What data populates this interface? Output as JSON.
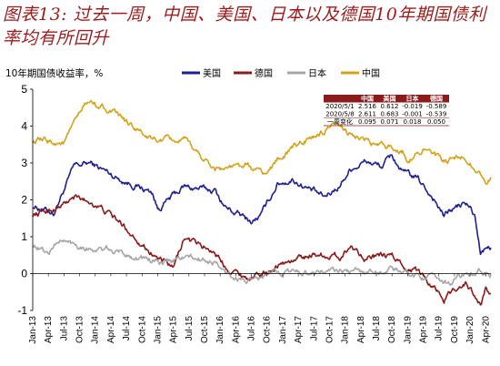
{
  "figure_title": "图表13: 过去一周，中国、美国、日本以及德国10年期国债利率均有所回升",
  "chart_data": {
    "type": "line",
    "ylabel": "10年期国债收益率，%",
    "ylim": [
      -1,
      5
    ],
    "yticks": [
      -1,
      0,
      1,
      2,
      3,
      4,
      5
    ],
    "xlim": [
      "2013-01",
      "2020-05"
    ],
    "xticks": [
      "Jan-13",
      "Apr-13",
      "Jul-13",
      "Oct-13",
      "Jan-14",
      "Apr-14",
      "Jul-14",
      "Oct-14",
      "Jan-15",
      "Apr-15",
      "Jul-15",
      "Oct-15",
      "Jan-16",
      "Apr-16",
      "Jul-16",
      "Oct-16",
      "Jan-17",
      "Apr-17",
      "Jul-17",
      "Oct-17",
      "Jan-18",
      "Apr-18",
      "Jul-18",
      "Oct-18",
      "Jan-19",
      "Apr-19",
      "Jul-19",
      "Oct-19",
      "Jan-20",
      "Apr-20"
    ],
    "legend_position": "top",
    "series": [
      {
        "name": "美国",
        "color": "#1f1f8f",
        "x": [
          "2013-01",
          "2013-05",
          "2013-09",
          "2013-12",
          "2014-06",
          "2014-12",
          "2015-01",
          "2015-06",
          "2015-12",
          "2016-02",
          "2016-07",
          "2016-09",
          "2016-12",
          "2017-03",
          "2017-09",
          "2017-12",
          "2018-02",
          "2018-05",
          "2018-08",
          "2018-10",
          "2018-12",
          "2019-03",
          "2019-06",
          "2019-08",
          "2019-09",
          "2019-12",
          "2020-01",
          "2020-02",
          "2020-03",
          "2020-04",
          "2020-05"
        ],
        "y": [
          1.85,
          1.65,
          2.9,
          3.0,
          2.55,
          2.2,
          1.75,
          2.35,
          2.25,
          1.8,
          1.4,
          1.6,
          2.45,
          2.55,
          2.05,
          2.4,
          2.85,
          3.05,
          2.9,
          3.2,
          2.75,
          2.55,
          2.05,
          1.55,
          1.7,
          1.9,
          1.8,
          1.5,
          0.55,
          0.62,
          0.7
        ]
      },
      {
        "name": "德国",
        "color": "#8b1a1a",
        "x": [
          "2013-01",
          "2013-06",
          "2013-09",
          "2014-01",
          "2014-06",
          "2014-12",
          "2015-04",
          "2015-06",
          "2015-12",
          "2016-02",
          "2016-07",
          "2016-10",
          "2016-12",
          "2017-03",
          "2017-07",
          "2017-12",
          "2018-02",
          "2018-05",
          "2018-10",
          "2018-12",
          "2019-03",
          "2019-06",
          "2019-08",
          "2019-10",
          "2019-12",
          "2020-01",
          "2020-03",
          "2020-04",
          "2020-05"
        ],
        "y": [
          1.6,
          1.8,
          2.05,
          1.9,
          1.35,
          0.55,
          0.1,
          0.95,
          0.6,
          0.2,
          -0.15,
          0.05,
          0.25,
          0.35,
          0.55,
          0.45,
          0.75,
          0.45,
          0.45,
          0.25,
          0.05,
          -0.3,
          -0.7,
          -0.4,
          -0.25,
          -0.4,
          -0.85,
          -0.45,
          -0.54
        ]
      },
      {
        "name": "日本",
        "color": "#a6a6a6",
        "x": [
          "2013-01",
          "2013-04",
          "2013-06",
          "2013-12",
          "2014-06",
          "2014-12",
          "2015-02",
          "2015-06",
          "2015-12",
          "2016-02",
          "2016-07",
          "2016-10",
          "2016-12",
          "2017-06",
          "2018-06",
          "2018-10",
          "2019-01",
          "2019-03",
          "2019-06",
          "2019-09",
          "2019-12",
          "2020-02",
          "2020-03",
          "2020-05"
        ],
        "y": [
          0.8,
          0.55,
          0.9,
          0.7,
          0.55,
          0.35,
          0.25,
          0.45,
          0.3,
          0.0,
          -0.25,
          -0.05,
          0.05,
          0.05,
          0.05,
          0.12,
          0.0,
          -0.05,
          -0.15,
          -0.25,
          -0.02,
          -0.05,
          0.05,
          0.0
        ]
      },
      {
        "name": "中国",
        "color": "#d4a21a",
        "x": [
          "2013-01",
          "2013-07",
          "2013-11",
          "2013-12",
          "2014-03",
          "2014-06",
          "2014-12",
          "2015-06",
          "2015-12",
          "2016-06",
          "2016-10",
          "2016-12",
          "2017-05",
          "2017-11",
          "2018-01",
          "2018-06",
          "2018-12",
          "2019-01",
          "2019-04",
          "2019-08",
          "2019-12",
          "2020-01",
          "2020-03",
          "2020-04",
          "2020-05"
        ],
        "y": [
          3.6,
          3.55,
          4.55,
          4.65,
          4.5,
          4.2,
          3.6,
          3.6,
          2.85,
          2.9,
          2.7,
          3.1,
          3.6,
          3.95,
          3.9,
          3.5,
          3.35,
          3.1,
          3.4,
          3.0,
          3.15,
          3.05,
          2.7,
          2.5,
          2.61
        ]
      }
    ],
    "table": {
      "headers": [
        "",
        "中国",
        "美国",
        "日本",
        "德国"
      ],
      "rows": [
        [
          "2020/5/1",
          "2.516",
          "0.612",
          "-0.019",
          "-0.589"
        ],
        [
          "2020/5/8",
          "2.611",
          "0.683",
          "-0.001",
          "-0.539"
        ],
        [
          "一周变化",
          "0.095",
          "0.071",
          "0.018",
          "0.050"
        ]
      ]
    }
  }
}
